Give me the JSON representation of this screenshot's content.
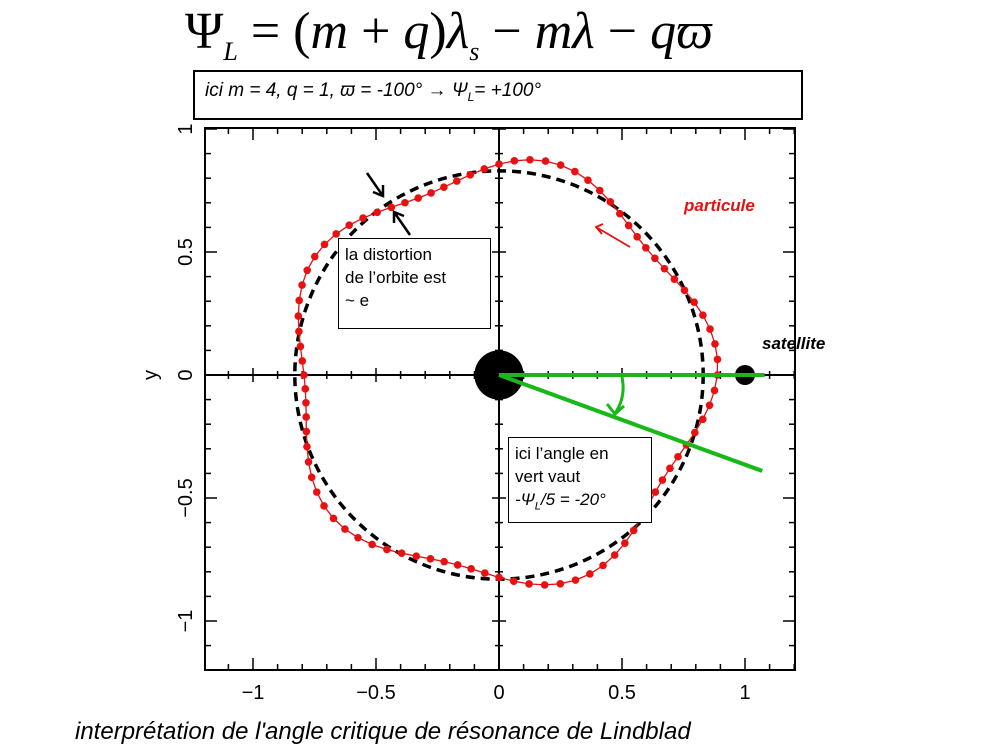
{
  "formula": {
    "psi": "Ψ",
    "psi_sub": "L",
    "eq": " = (",
    "m1": "m",
    "plus": " + ",
    "q1": "q",
    "close": ")",
    "lambda_s": "λ",
    "lambda_s_sub": "s",
    "minus1": " − ",
    "m2": "m",
    "lambda": "λ",
    "minus2": " − ",
    "q2": "q",
    "varpi": "ϖ"
  },
  "infobox": {
    "part1": "ici m = 4, q = 1, ",
    "varpi_eq": "ϖ = -100°",
    "arrow": "  → ",
    "psi": "Ψ",
    "psi_sub": "L",
    "result": "= +100°"
  },
  "notes": {
    "distortion": {
      "line1": "la distortion",
      "line2": "de l’orbite est",
      "line3": "~ e"
    },
    "angle": {
      "line1": "ici l’angle en",
      "line2": "vert vaut",
      "line3_pre": "-Ψ",
      "line3_sub": "L",
      "line3_post": "/5 = -20°"
    }
  },
  "labels": {
    "particule": "particule",
    "satellite": "satellite"
  },
  "caption": "interprétation de l'angle critique de résonance de Lindblad",
  "colors": {
    "orbit": "#e81010",
    "angle": "#18b818",
    "circle": "#000000"
  },
  "chart_data": {
    "type": "scatter",
    "xlabel": "",
    "ylabel": "y",
    "xlim": [
      -1.2,
      1.2
    ],
    "ylim": [
      -1.2,
      1.0
    ],
    "xticks": [
      -1,
      -0.5,
      0,
      0.5,
      1
    ],
    "xtick_labels": [
      "−1",
      "−0.5",
      "0",
      "0.5",
      "1"
    ],
    "yticks": [
      -1,
      -0.5,
      0,
      0.5,
      1
    ],
    "ytick_labels": [
      "−1",
      "−0.5",
      "0",
      "0.5",
      "1"
    ],
    "reference_circle_radius": 0.83,
    "central_body": {
      "x": 0,
      "y": 0,
      "radius": 0.1
    },
    "satellite": {
      "x": 1.0,
      "y": 0
    },
    "orbit": {
      "mean_radius": 0.84,
      "eccentricity": 0.06,
      "m": 4,
      "q": 1,
      "psi_L_deg": 100,
      "points": 88
    },
    "green_lines": [
      {
        "x1": 0,
        "y1": 0,
        "x2": 1.08,
        "y2": 0
      },
      {
        "x1": 0,
        "y1": 0,
        "x2": 1.07,
        "y2": -0.39
      }
    ]
  }
}
